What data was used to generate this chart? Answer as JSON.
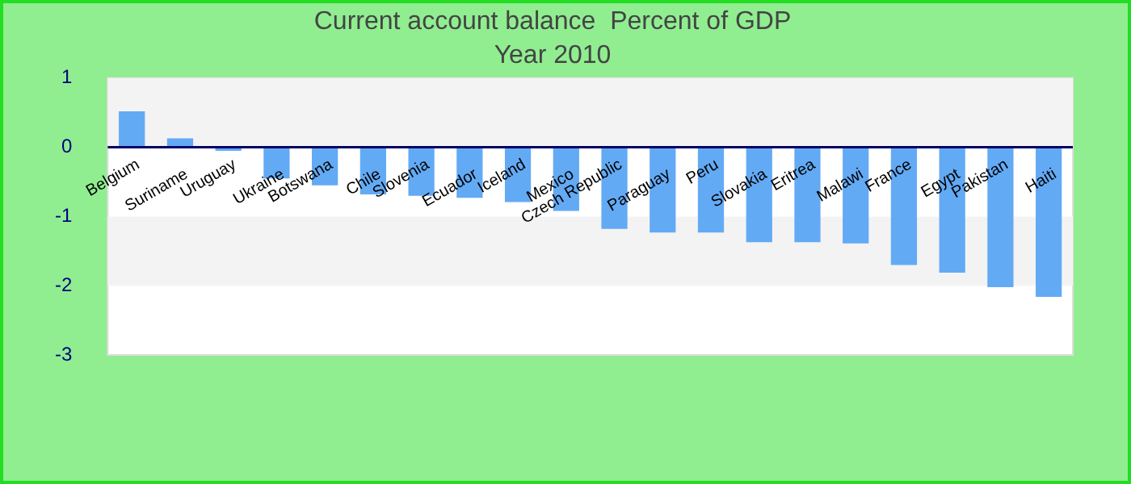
{
  "chart_data": {
    "type": "bar",
    "title": "Current account balance  Percent of GDP",
    "subtitle": "Year 2010",
    "categories": [
      "Belgium",
      "Suriname",
      "Uruguay",
      "Ukraine",
      "Botswana",
      "Chile",
      "Slovenia",
      "Ecuador",
      "Iceland",
      "Mexico",
      "Czech Republic",
      "Paraguay",
      "Peru",
      "Slovakia",
      "Eritrea",
      "Malawi",
      "France",
      "Egypt",
      "Pakistan",
      "Haiti"
    ],
    "values": [
      0.52,
      0.13,
      -0.05,
      -0.45,
      -0.55,
      -0.68,
      -0.7,
      -0.73,
      -0.79,
      -0.92,
      -1.18,
      -1.23,
      -1.23,
      -1.37,
      -1.37,
      -1.39,
      -1.7,
      -1.81,
      -2.02,
      -2.16
    ],
    "color": "#63aaf5",
    "ylim": [
      -3,
      1
    ],
    "yticks": [
      -3,
      -2,
      -1,
      0,
      1
    ],
    "legend": false
  }
}
